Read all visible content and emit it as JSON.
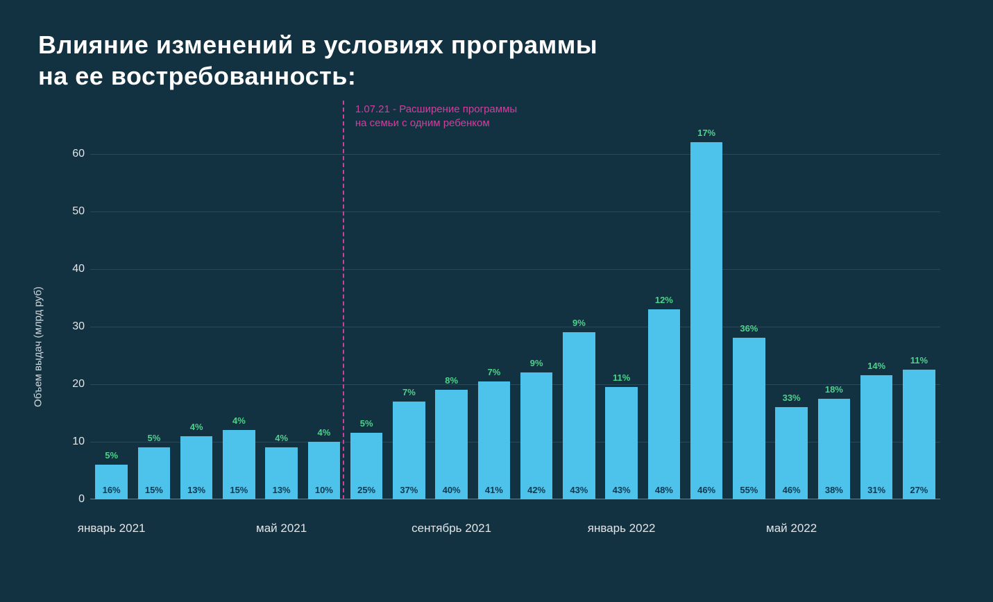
{
  "title_line1": "Влияние изменений в условиях программы",
  "title_line2": "на ее востребованность:",
  "chart": {
    "type": "bar",
    "background_color": "#133241",
    "bar_color": "#4dc3ec",
    "grid_color": "#2a4a5a",
    "axis_color": "#6a8a9a",
    "top_label_color": "#4dd28a",
    "inside_label_color": "#0b3a52",
    "annotation_color": "#d13f9e",
    "ylabel": "Объем выдач (млрд руб)",
    "ylim": [
      0,
      65
    ],
    "yticks": [
      0,
      10,
      20,
      30,
      40,
      50,
      60
    ],
    "title_fontsize": 36,
    "ylabel_fontsize": 15,
    "tick_fontsize": 16,
    "barlabel_fontsize": 13,
    "bar_width_ratio": 0.76,
    "annotation": {
      "line1": "1.07.21 - Расширение программы",
      "line2": "на семьи с одним ребенком",
      "after_index": 5
    },
    "xticks": [
      {
        "index": 0,
        "label": "январь 2021"
      },
      {
        "index": 4,
        "label": "май 2021"
      },
      {
        "index": 8,
        "label": "сентябрь 2021"
      },
      {
        "index": 12,
        "label": "январь 2022"
      },
      {
        "index": 16,
        "label": "май 2022"
      }
    ],
    "bars": [
      {
        "value": 6,
        "top": "5%",
        "inside": "16%"
      },
      {
        "value": 9,
        "top": "5%",
        "inside": "15%"
      },
      {
        "value": 11,
        "top": "4%",
        "inside": "13%"
      },
      {
        "value": 12,
        "top": "4%",
        "inside": "15%"
      },
      {
        "value": 9,
        "top": "4%",
        "inside": "13%"
      },
      {
        "value": 10,
        "top": "4%",
        "inside": "10%"
      },
      {
        "value": 11.5,
        "top": "5%",
        "inside": "25%"
      },
      {
        "value": 17,
        "top": "7%",
        "inside": "37%"
      },
      {
        "value": 19,
        "top": "8%",
        "inside": "40%"
      },
      {
        "value": 20.5,
        "top": "7%",
        "inside": "41%"
      },
      {
        "value": 22,
        "top": "9%",
        "inside": "42%"
      },
      {
        "value": 29,
        "top": "9%",
        "inside": "43%"
      },
      {
        "value": 19.5,
        "top": "11%",
        "inside": "43%"
      },
      {
        "value": 33,
        "top": "12%",
        "inside": "48%"
      },
      {
        "value": 62,
        "top": "17%",
        "inside": "46%"
      },
      {
        "value": 28,
        "top": "36%",
        "inside": "55%"
      },
      {
        "value": 16,
        "top": "33%",
        "inside": "46%"
      },
      {
        "value": 17.5,
        "top": "18%",
        "inside": "38%"
      },
      {
        "value": 21.5,
        "top": "14%",
        "inside": "31%"
      },
      {
        "value": 22.5,
        "top": "11%",
        "inside": "27%"
      }
    ]
  }
}
